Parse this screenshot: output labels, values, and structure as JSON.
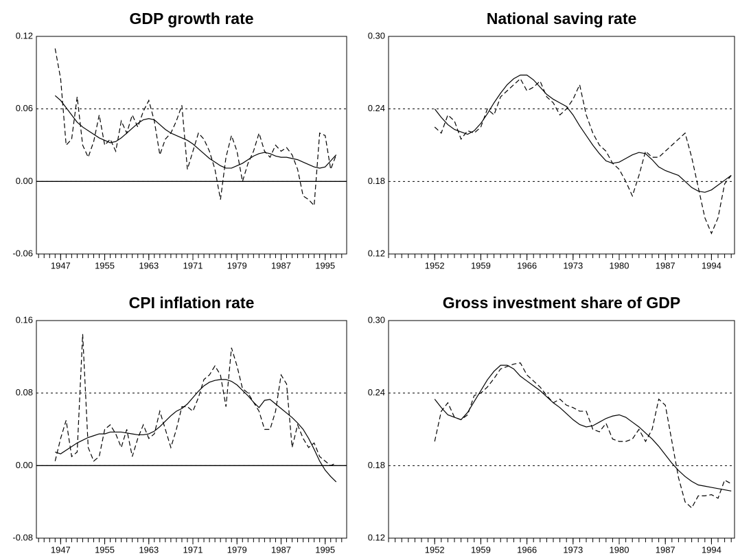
{
  "chart_data": [
    {
      "type": "line",
      "title": "GDP growth rate",
      "x": [
        1946,
        1947,
        1948,
        1949,
        1950,
        1951,
        1952,
        1953,
        1954,
        1955,
        1956,
        1957,
        1958,
        1959,
        1960,
        1961,
        1962,
        1963,
        1964,
        1965,
        1966,
        1967,
        1968,
        1969,
        1970,
        1971,
        1972,
        1973,
        1974,
        1975,
        1976,
        1977,
        1978,
        1979,
        1980,
        1981,
        1982,
        1983,
        1984,
        1985,
        1986,
        1987,
        1988,
        1989,
        1990,
        1991,
        1992,
        1993,
        1994,
        1995,
        1996,
        1997
      ],
      "series": [
        {
          "color": "#000000",
          "style": "dashed",
          "values": [
            0.11,
            0.085,
            0.03,
            0.035,
            0.07,
            0.03,
            0.02,
            0.033,
            0.055,
            0.03,
            0.035,
            0.025,
            0.05,
            0.04,
            0.055,
            0.045,
            0.058,
            0.067,
            0.05,
            0.022,
            0.035,
            0.04,
            0.05,
            0.063,
            0.01,
            0.025,
            0.04,
            0.035,
            0.025,
            0.01,
            -0.015,
            0.02,
            0.038,
            0.025,
            0.0,
            0.015,
            0.025,
            0.04,
            0.025,
            0.02,
            0.03,
            0.025,
            0.028,
            0.022,
            0.01,
            -0.012,
            -0.015,
            -0.02,
            0.04,
            0.038,
            0.01,
            0.022
          ]
        },
        {
          "color": "#000000",
          "style": "solid",
          "values": [
            0.071,
            0.067,
            0.061,
            0.055,
            0.049,
            0.045,
            0.042,
            0.039,
            0.036,
            0.034,
            0.032,
            0.033,
            0.036,
            0.04,
            0.044,
            0.048,
            0.051,
            0.052,
            0.051,
            0.047,
            0.043,
            0.04,
            0.038,
            0.036,
            0.034,
            0.031,
            0.027,
            0.023,
            0.019,
            0.016,
            0.013,
            0.011,
            0.011,
            0.013,
            0.015,
            0.018,
            0.021,
            0.023,
            0.024,
            0.023,
            0.021,
            0.02,
            0.02,
            0.019,
            0.018,
            0.016,
            0.014,
            0.012,
            0.011,
            0.012,
            0.017,
            0.022
          ]
        }
      ],
      "xlim": [
        1942.6,
        1998.9
      ],
      "xticks": [
        1947,
        1955,
        1963,
        1971,
        1979,
        1987,
        1995
      ],
      "ylim": [
        -0.06,
        0.12
      ],
      "yticks": [
        -0.06,
        {
          "value": 0,
          "label": "0.00"
        },
        0.06,
        0.12
      ],
      "grid": true,
      "zero_line": true
    },
    {
      "type": "line",
      "title": "National saving rate",
      "x": [
        1952,
        1953,
        1954,
        1955,
        1956,
        1957,
        1958,
        1959,
        1960,
        1961,
        1962,
        1963,
        1964,
        1965,
        1966,
        1967,
        1968,
        1969,
        1970,
        1971,
        1972,
        1973,
        1974,
        1975,
        1976,
        1977,
        1978,
        1979,
        1980,
        1981,
        1982,
        1983,
        1984,
        1985,
        1986,
        1987,
        1988,
        1989,
        1990,
        1991,
        1992,
        1993,
        1994,
        1995,
        1996,
        1997
      ],
      "series": [
        {
          "color": "#000000",
          "style": "dashed",
          "values": [
            0.225,
            0.22,
            0.235,
            0.23,
            0.215,
            0.222,
            0.22,
            0.225,
            0.24,
            0.235,
            0.25,
            0.255,
            0.26,
            0.265,
            0.255,
            0.258,
            0.263,
            0.25,
            0.245,
            0.235,
            0.24,
            0.248,
            0.26,
            0.235,
            0.22,
            0.21,
            0.205,
            0.195,
            0.19,
            0.18,
            0.168,
            0.185,
            0.205,
            0.2,
            0.2,
            0.205,
            0.21,
            0.215,
            0.22,
            0.2,
            0.175,
            0.15,
            0.137,
            0.15,
            0.178,
            0.185
          ]
        },
        {
          "color": "#000000",
          "style": "solid",
          "values": [
            0.24,
            0.233,
            0.227,
            0.223,
            0.221,
            0.219,
            0.222,
            0.228,
            0.236,
            0.245,
            0.253,
            0.26,
            0.265,
            0.268,
            0.268,
            0.264,
            0.258,
            0.252,
            0.248,
            0.245,
            0.242,
            0.235,
            0.226,
            0.218,
            0.21,
            0.203,
            0.197,
            0.195,
            0.196,
            0.199,
            0.202,
            0.204,
            0.203,
            0.198,
            0.192,
            0.189,
            0.187,
            0.185,
            0.18,
            0.175,
            0.172,
            0.171,
            0.173,
            0.177,
            0.181,
            0.185
          ]
        }
      ],
      "xlim": [
        1945,
        1997.5
      ],
      "xticks": [
        1952,
        1959,
        1966,
        1973,
        1980,
        1987,
        1994
      ],
      "ylim": [
        0.12,
        0.3
      ],
      "yticks": [
        0.12,
        0.18,
        0.24,
        {
          "value": 0.3,
          "label": "0.30"
        }
      ],
      "grid": true,
      "zero_line": false
    },
    {
      "type": "line",
      "title": "CPI inflation rate",
      "x": [
        1946,
        1947,
        1948,
        1949,
        1950,
        1951,
        1952,
        1953,
        1954,
        1955,
        1956,
        1957,
        1958,
        1959,
        1960,
        1961,
        1962,
        1963,
        1964,
        1965,
        1966,
        1967,
        1968,
        1969,
        1970,
        1971,
        1972,
        1973,
        1974,
        1975,
        1976,
        1977,
        1978,
        1979,
        1980,
        1981,
        1982,
        1983,
        1984,
        1985,
        1986,
        1987,
        1988,
        1989,
        1990,
        1991,
        1992,
        1993,
        1994,
        1995,
        1996,
        1997
      ],
      "series": [
        {
          "color": "#000000",
          "style": "dashed",
          "values": [
            0.005,
            0.03,
            0.05,
            0.01,
            0.015,
            0.145,
            0.02,
            0.005,
            0.01,
            0.04,
            0.045,
            0.035,
            0.02,
            0.04,
            0.01,
            0.03,
            0.045,
            0.03,
            0.035,
            0.06,
            0.04,
            0.02,
            0.04,
            0.065,
            0.065,
            0.06,
            0.075,
            0.095,
            0.1,
            0.11,
            0.1,
            0.065,
            0.13,
            0.11,
            0.085,
            0.08,
            0.07,
            0.06,
            0.04,
            0.04,
            0.06,
            0.1,
            0.09,
            0.02,
            0.045,
            0.03,
            0.02,
            0.025,
            0.01,
            0.005,
            0.0,
            0.003
          ]
        },
        {
          "color": "#000000",
          "style": "solid",
          "values": [
            0.015,
            0.013,
            0.017,
            0.021,
            0.025,
            0.028,
            0.031,
            0.033,
            0.035,
            0.035,
            0.037,
            0.037,
            0.037,
            0.036,
            0.035,
            0.034,
            0.034,
            0.035,
            0.038,
            0.043,
            0.049,
            0.055,
            0.06,
            0.063,
            0.068,
            0.075,
            0.082,
            0.088,
            0.092,
            0.094,
            0.095,
            0.095,
            0.093,
            0.089,
            0.083,
            0.077,
            0.07,
            0.064,
            0.072,
            0.073,
            0.068,
            0.063,
            0.058,
            0.053,
            0.047,
            0.04,
            0.03,
            0.018,
            0.005,
            -0.005,
            -0.012,
            -0.018
          ]
        }
      ],
      "xlim": [
        1942.6,
        1998.9
      ],
      "xticks": [
        1947,
        1955,
        1963,
        1971,
        1979,
        1987,
        1995
      ],
      "ylim": [
        -0.08,
        0.16
      ],
      "yticks": [
        -0.08,
        {
          "value": 0,
          "label": "0.00"
        },
        0.08,
        0.16
      ],
      "grid": true,
      "zero_line": true
    },
    {
      "type": "line",
      "title": "Gross investment share of GDP",
      "x": [
        1952,
        1953,
        1954,
        1955,
        1956,
        1957,
        1958,
        1959,
        1960,
        1961,
        1962,
        1963,
        1964,
        1965,
        1966,
        1967,
        1968,
        1969,
        1970,
        1971,
        1972,
        1973,
        1974,
        1975,
        1976,
        1977,
        1978,
        1979,
        1980,
        1981,
        1982,
        1983,
        1984,
        1985,
        1986,
        1987,
        1988,
        1989,
        1990,
        1991,
        1992,
        1993,
        1994,
        1995,
        1996,
        1997
      ],
      "series": [
        {
          "color": "#000000",
          "style": "dashed",
          "values": [
            0.2,
            0.225,
            0.232,
            0.22,
            0.218,
            0.222,
            0.238,
            0.24,
            0.245,
            0.252,
            0.26,
            0.262,
            0.264,
            0.265,
            0.255,
            0.25,
            0.245,
            0.238,
            0.232,
            0.235,
            0.23,
            0.228,
            0.225,
            0.225,
            0.21,
            0.208,
            0.215,
            0.202,
            0.2,
            0.2,
            0.202,
            0.21,
            0.2,
            0.21,
            0.235,
            0.23,
            0.2,
            0.17,
            0.15,
            0.145,
            0.155,
            0.155,
            0.156,
            0.153,
            0.168,
            0.165
          ]
        },
        {
          "color": "#000000",
          "style": "solid",
          "values": [
            0.235,
            0.228,
            0.222,
            0.22,
            0.218,
            0.224,
            0.233,
            0.242,
            0.251,
            0.258,
            0.263,
            0.263,
            0.26,
            0.254,
            0.25,
            0.246,
            0.242,
            0.237,
            0.232,
            0.228,
            0.223,
            0.218,
            0.214,
            0.212,
            0.213,
            0.216,
            0.219,
            0.221,
            0.222,
            0.22,
            0.216,
            0.212,
            0.207,
            0.202,
            0.196,
            0.189,
            0.182,
            0.176,
            0.171,
            0.167,
            0.164,
            0.163,
            0.162,
            0.161,
            0.16,
            0.159
          ]
        }
      ],
      "xlim": [
        1945,
        1997.5
      ],
      "xticks": [
        1952,
        1959,
        1966,
        1973,
        1980,
        1987,
        1994
      ],
      "ylim": [
        0.12,
        0.3
      ],
      "yticks": [
        0.12,
        0.18,
        0.24,
        {
          "value": 0.3,
          "label": "0.30"
        }
      ],
      "grid": true,
      "zero_line": false
    }
  ]
}
